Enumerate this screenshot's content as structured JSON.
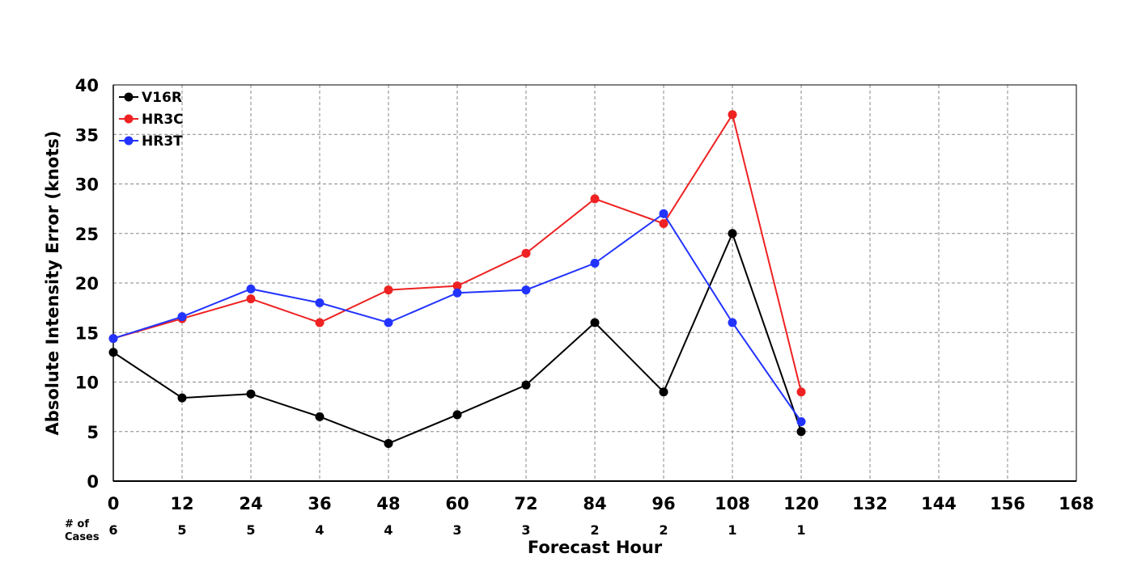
{
  "chart_data": {
    "type": "line",
    "xlabel": "Forecast Hour",
    "ylabel": "Absolute Intensity Error (knots)",
    "xlim": [
      0,
      168
    ],
    "ylim": [
      0,
      40
    ],
    "x_ticks": [
      0,
      12,
      24,
      36,
      48,
      60,
      72,
      84,
      96,
      108,
      120,
      132,
      144,
      156,
      168
    ],
    "y_ticks": [
      0,
      5,
      10,
      15,
      20,
      25,
      30,
      35,
      40
    ],
    "grid": true,
    "legend_position": "top-left",
    "x": [
      0,
      12,
      24,
      36,
      48,
      60,
      72,
      84,
      96,
      108,
      120
    ],
    "series": [
      {
        "name": "V16R",
        "color": "#000000",
        "values": [
          13.0,
          8.4,
          8.8,
          6.5,
          3.8,
          6.7,
          9.7,
          16.0,
          9.0,
          25.0,
          5.0
        ]
      },
      {
        "name": "HR3C",
        "color": "#ee2222",
        "values": [
          14.4,
          16.4,
          18.4,
          16.0,
          19.3,
          19.7,
          23.0,
          28.5,
          26.0,
          37.0,
          9.0
        ]
      },
      {
        "name": "HR3T",
        "color": "#2233ff",
        "values": [
          14.4,
          16.6,
          19.4,
          18.0,
          16.0,
          19.0,
          19.3,
          22.0,
          27.0,
          16.0,
          6.0
        ]
      }
    ],
    "cases_label": "# of\nCases",
    "cases": [
      6,
      5,
      5,
      4,
      4,
      3,
      3,
      2,
      2,
      1,
      1
    ]
  }
}
